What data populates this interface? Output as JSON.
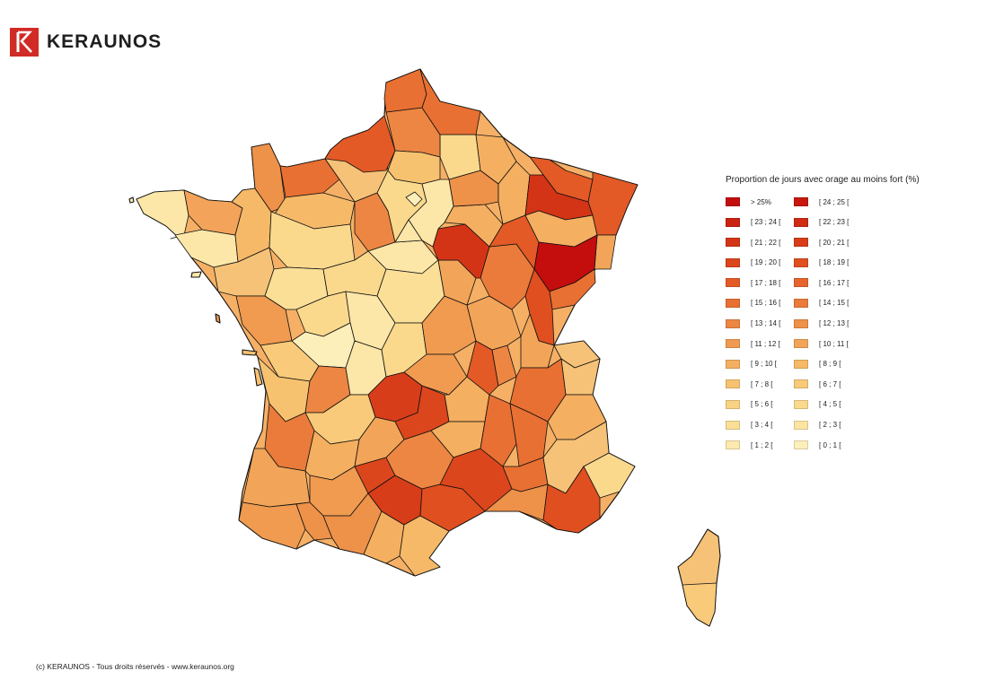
{
  "brand": {
    "name": "KERAUNOS",
    "logo_letter": "K"
  },
  "legend": {
    "title": "Proportion de jours avec orage au moins fort (%)",
    "items": [
      {
        "label": "> 25%",
        "color": "#c40d0d"
      },
      {
        "label": "[ 24 ; 25 [",
        "color": "#c8180f"
      },
      {
        "label": "[ 23 ; 24 [",
        "color": "#cc2211"
      },
      {
        "label": "[ 22 ; 23 [",
        "color": "#d02b13"
      },
      {
        "label": "[ 21 ; 22 [",
        "color": "#d43416"
      },
      {
        "label": "[ 20 ; 21 [",
        "color": "#d83d19"
      },
      {
        "label": "[ 19 ; 20 [",
        "color": "#dc461c"
      },
      {
        "label": "[ 18 ; 19 [",
        "color": "#e04f20"
      },
      {
        "label": "[ 17 ; 18 [",
        "color": "#e35a26"
      },
      {
        "label": "[ 16 ; 17 [",
        "color": "#e6652c"
      },
      {
        "label": "[ 15 ; 16 [",
        "color": "#e87032"
      },
      {
        "label": "[ 14 ; 15 [",
        "color": "#ea7b3a"
      },
      {
        "label": "[ 13 ; 14 [",
        "color": "#ec8642"
      },
      {
        "label": "[ 12 ; 13 [",
        "color": "#ee9149"
      },
      {
        "label": "[ 11 ; 12 [",
        "color": "#f09b50"
      },
      {
        "label": "[ 10 ; 11 [",
        "color": "#f2a558"
      },
      {
        "label": "[ 9 ; 10 [",
        "color": "#f4af60"
      },
      {
        "label": "[ 8 ; 9 [",
        "color": "#f6b968"
      },
      {
        "label": "[ 7 ; 8 [",
        "color": "#f7c270"
      },
      {
        "label": "[ 6 ; 7 [",
        "color": "#f8ca79"
      },
      {
        "label": "[ 5 ; 6 [",
        "color": "#f9d283"
      },
      {
        "label": "[ 4 ; 5 [",
        "color": "#fad98d"
      },
      {
        "label": "[ 3 ; 4 [",
        "color": "#fbdf97"
      },
      {
        "label": "[ 2 ; 3 [",
        "color": "#fce4a2"
      },
      {
        "label": "[ 1 ; 2 [",
        "color": "#fde9ad"
      },
      {
        "label": "[ 0 ; 1 [",
        "color": "#fdefb9"
      }
    ]
  },
  "footer": {
    "copyright": "(c) KERAUNOS - Tous droits réservés - www.keraunos.org"
  }
}
